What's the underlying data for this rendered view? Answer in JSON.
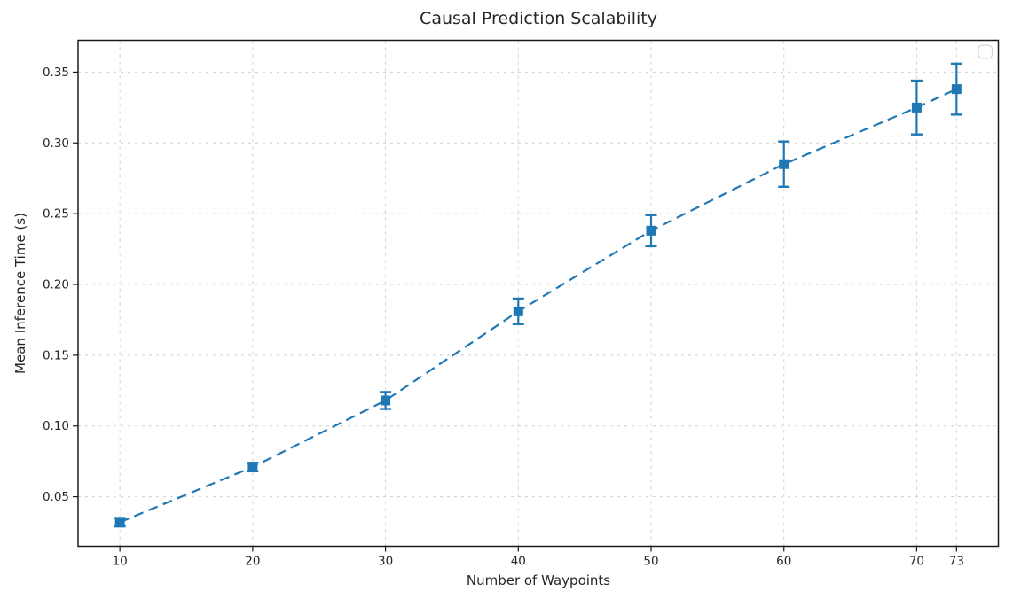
{
  "chart_data": {
    "type": "line",
    "title": "Causal Prediction Scalability",
    "xlabel": "Number of Waypoints",
    "ylabel": "Mean Inference Time (s)",
    "x": [
      10,
      20,
      30,
      40,
      50,
      60,
      70,
      73
    ],
    "y": [
      0.032,
      0.071,
      0.118,
      0.181,
      0.238,
      0.285,
      0.325,
      0.338
    ],
    "yerr": [
      0.003,
      0.003,
      0.006,
      0.009,
      0.011,
      0.016,
      0.019,
      0.018
    ],
    "x_tick_labels": [
      "10",
      "20",
      "30",
      "40",
      "50",
      "60",
      "70",
      "73"
    ],
    "x_ticks": [
      10,
      20,
      30,
      40,
      50,
      60,
      70,
      73
    ],
    "y_tick_labels": [
      "0.05",
      "0.10",
      "0.15",
      "0.20",
      "0.25",
      "0.30",
      "0.35"
    ],
    "y_ticks": [
      0.05,
      0.1,
      0.15,
      0.2,
      0.25,
      0.3,
      0.35
    ],
    "xlim": [
      6.85,
      76.15
    ],
    "ylim": [
      0.015,
      0.3725
    ],
    "grid": true,
    "line_style": "dashed",
    "marker": "square",
    "line_color": "#1f77b4",
    "grid_color": "#cfcfcf",
    "spine_color": "#1a1a1a",
    "text_color": "#262626",
    "legend": {
      "visible": true,
      "entries": [],
      "position": "upper-right"
    }
  }
}
